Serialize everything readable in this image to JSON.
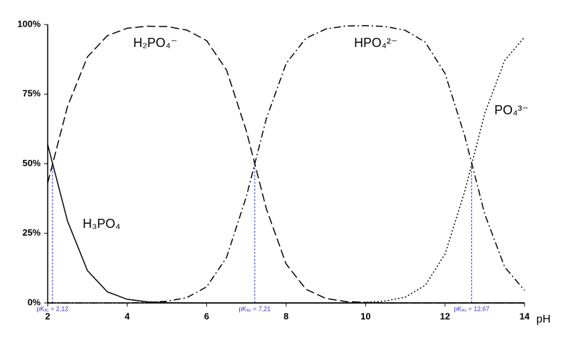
{
  "chart_data": {
    "type": "line",
    "xlabel": "pH",
    "x": [
      2,
      2.5,
      3,
      3.5,
      4,
      4.5,
      5,
      5.5,
      6,
      6.5,
      7,
      7.5,
      8,
      8.5,
      9,
      9.5,
      10,
      10.5,
      11,
      11.5,
      12,
      12.5,
      13,
      13.5,
      14
    ],
    "series": [
      {
        "name": "H₃PO₄",
        "color": "#000000",
        "dash": "solid",
        "values": [
          56.9,
          29.4,
          11.6,
          4.0,
          1.3,
          0.4,
          0.1,
          0,
          0,
          0,
          0,
          0,
          0,
          0,
          0,
          0,
          0,
          0,
          0,
          0,
          0,
          0,
          0,
          0,
          0
        ]
      },
      {
        "name": "H₂PO₄⁻",
        "color": "#000000",
        "dash": "dashed",
        "values": [
          43.1,
          70.6,
          88.4,
          96.0,
          98.7,
          99.4,
          99.3,
          98.0,
          94.2,
          83.7,
          61.8,
          33.9,
          14.0,
          4.9,
          1.6,
          0.5,
          0.2,
          0,
          0,
          0,
          0,
          0,
          0,
          0,
          0
        ]
      },
      {
        "name": "HPO₄²⁻",
        "color": "#000000",
        "dash": "dashdot",
        "values": [
          0,
          0,
          0,
          0,
          0,
          0.2,
          0.6,
          1.9,
          5.8,
          16.3,
          38.2,
          66.1,
          86.0,
          95.1,
          98.4,
          99.5,
          99.6,
          99.3,
          97.9,
          93.7,
          82.4,
          59.7,
          31.9,
          12.9,
          4.5
        ]
      },
      {
        "name": "PO₄³⁻",
        "color": "#000000",
        "dash": "dotted",
        "values": [
          0,
          0,
          0,
          0,
          0,
          0,
          0,
          0,
          0,
          0,
          0,
          0,
          0,
          0,
          0,
          0,
          0.2,
          0.7,
          2.1,
          6.3,
          17.6,
          40.3,
          68.1,
          87.1,
          95.5
        ]
      }
    ],
    "pka_lines": [
      {
        "x": 2.12,
        "y": 50,
        "label": "pKₐ₁ = 2,12"
      },
      {
        "x": 7.21,
        "y": 50,
        "label": "pKₐ₂ = 7,21"
      },
      {
        "x": 12.67,
        "y": 50,
        "label": "pKₐ₃ = 12,67"
      }
    ],
    "pka_color": "#3333cc",
    "xlim": [
      2,
      14
    ],
    "xticks": [
      2,
      4,
      6,
      8,
      10,
      12,
      14
    ],
    "ylim": [
      0,
      100
    ],
    "yticks": [
      {
        "value": 0,
        "label": "0%"
      },
      {
        "value": 25,
        "label": "25%"
      },
      {
        "value": 50,
        "label": "50%"
      },
      {
        "value": 75,
        "label": "75%"
      },
      {
        "value": 100,
        "label": "100%"
      }
    ]
  }
}
